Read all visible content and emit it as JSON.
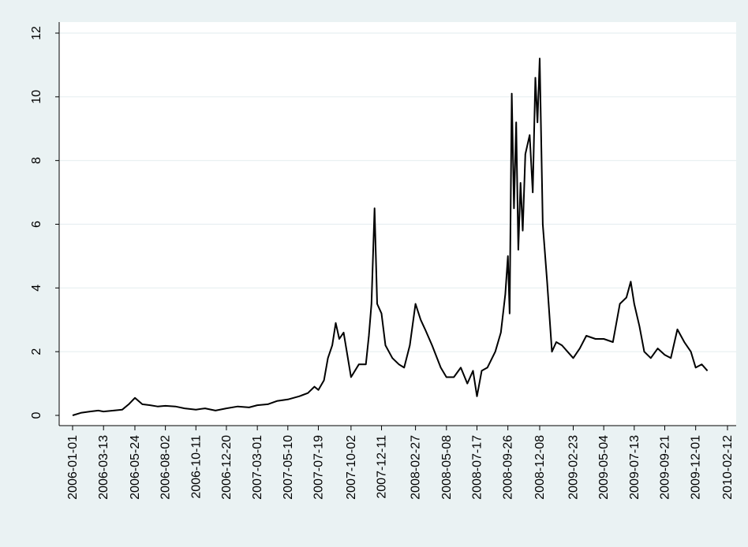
{
  "chart_data": {
    "type": "line",
    "title": "",
    "xlabel": "",
    "ylabel": "",
    "ylim": [
      0,
      12
    ],
    "y_ticks": [
      "0",
      "2",
      "4",
      "6",
      "8",
      "10",
      "12"
    ],
    "grid": true,
    "legend": "none",
    "x_tick_labels": [
      "2006-01-01",
      "2006-03-13",
      "2006-05-24",
      "2006-08-02",
      "2006-10-11",
      "2006-12-20",
      "2007-03-01",
      "2007-05-10",
      "2007-07-19",
      "2007-10-02",
      "2007-12-11",
      "2008-02-27",
      "2008-05-08",
      "2008-07-17",
      "2008-09-26",
      "2008-12-08",
      "2009-02-23",
      "2009-05-04",
      "2009-07-13",
      "2009-09-21",
      "2009-12-01",
      "2010-02-12"
    ],
    "colors": {
      "background": "#eaf2f3",
      "plot_background": "#ffffff",
      "grid": "#e7eff1",
      "line": "#000000"
    },
    "series": [
      {
        "x": [
          "2006-01-01",
          "2006-01-20",
          "2006-02-10",
          "2006-03-01",
          "2006-03-13",
          "2006-04-05",
          "2006-04-25",
          "2006-05-10",
          "2006-05-24",
          "2006-06-10",
          "2006-06-28",
          "2006-07-15",
          "2006-08-02",
          "2006-08-25",
          "2006-09-15",
          "2006-10-11",
          "2006-11-01",
          "2006-11-25",
          "2006-12-20",
          "2007-01-15",
          "2007-02-10",
          "2007-03-01",
          "2007-03-25",
          "2007-04-15",
          "2007-05-10",
          "2007-06-05",
          "2007-06-25",
          "2007-07-10",
          "2007-07-19",
          "2007-08-01",
          "2007-08-10",
          "2007-08-20",
          "2007-08-28",
          "2007-09-05",
          "2007-09-15",
          "2007-10-02",
          "2007-10-20",
          "2007-11-05",
          "2007-11-12",
          "2007-11-18",
          "2007-11-25",
          "2007-12-01",
          "2007-12-11",
          "2007-12-20",
          "2008-01-05",
          "2008-01-20",
          "2008-02-01",
          "2008-02-14",
          "2008-02-27",
          "2008-03-10",
          "2008-03-20",
          "2008-04-05",
          "2008-04-25",
          "2008-05-08",
          "2008-05-25",
          "2008-06-10",
          "2008-06-25",
          "2008-07-08",
          "2008-07-17",
          "2008-07-28",
          "2008-08-10",
          "2008-08-28",
          "2008-09-10",
          "2008-09-20",
          "2008-09-26",
          "2008-09-30",
          "2008-10-05",
          "2008-10-10",
          "2008-10-15",
          "2008-10-20",
          "2008-10-25",
          "2008-10-30",
          "2008-11-05",
          "2008-11-15",
          "2008-11-22",
          "2008-11-28",
          "2008-12-03",
          "2008-12-08",
          "2008-12-15",
          "2008-12-25",
          "2009-01-05",
          "2009-01-15",
          "2009-01-28",
          "2009-02-10",
          "2009-02-23",
          "2009-03-10",
          "2009-03-25",
          "2009-04-15",
          "2009-05-04",
          "2009-05-25",
          "2009-06-10",
          "2009-06-25",
          "2009-07-05",
          "2009-07-13",
          "2009-07-25",
          "2009-08-05",
          "2009-08-20",
          "2009-09-05",
          "2009-09-21",
          "2009-10-05",
          "2009-10-20",
          "2009-11-05",
          "2009-11-20",
          "2009-12-01",
          "2009-12-15",
          "2009-12-28"
        ],
        "y": [
          0.0,
          0.08,
          0.12,
          0.15,
          0.12,
          0.15,
          0.18,
          0.35,
          0.55,
          0.35,
          0.32,
          0.28,
          0.3,
          0.28,
          0.22,
          0.18,
          0.22,
          0.15,
          0.22,
          0.28,
          0.25,
          0.32,
          0.35,
          0.45,
          0.5,
          0.6,
          0.7,
          0.9,
          0.8,
          1.1,
          1.8,
          2.2,
          2.9,
          2.4,
          2.6,
          1.2,
          1.6,
          1.6,
          2.5,
          3.5,
          6.5,
          3.5,
          3.2,
          2.2,
          1.8,
          1.6,
          1.5,
          2.2,
          3.5,
          3.0,
          2.7,
          2.2,
          1.5,
          1.2,
          1.2,
          1.5,
          1.0,
          1.4,
          0.6,
          1.4,
          1.5,
          2.0,
          2.6,
          3.8,
          5.0,
          3.2,
          10.1,
          6.5,
          9.2,
          5.2,
          7.3,
          5.8,
          8.2,
          8.8,
          7.0,
          10.6,
          9.2,
          11.2,
          6.0,
          4.2,
          2.0,
          2.3,
          2.2,
          2.0,
          1.8,
          2.1,
          2.5,
          2.4,
          2.4,
          2.3,
          3.5,
          3.7,
          4.2,
          3.5,
          2.8,
          2.0,
          1.8,
          2.1,
          1.9,
          1.8,
          2.7,
          2.3,
          2.0,
          1.5,
          1.6,
          1.4
        ]
      }
    ]
  }
}
